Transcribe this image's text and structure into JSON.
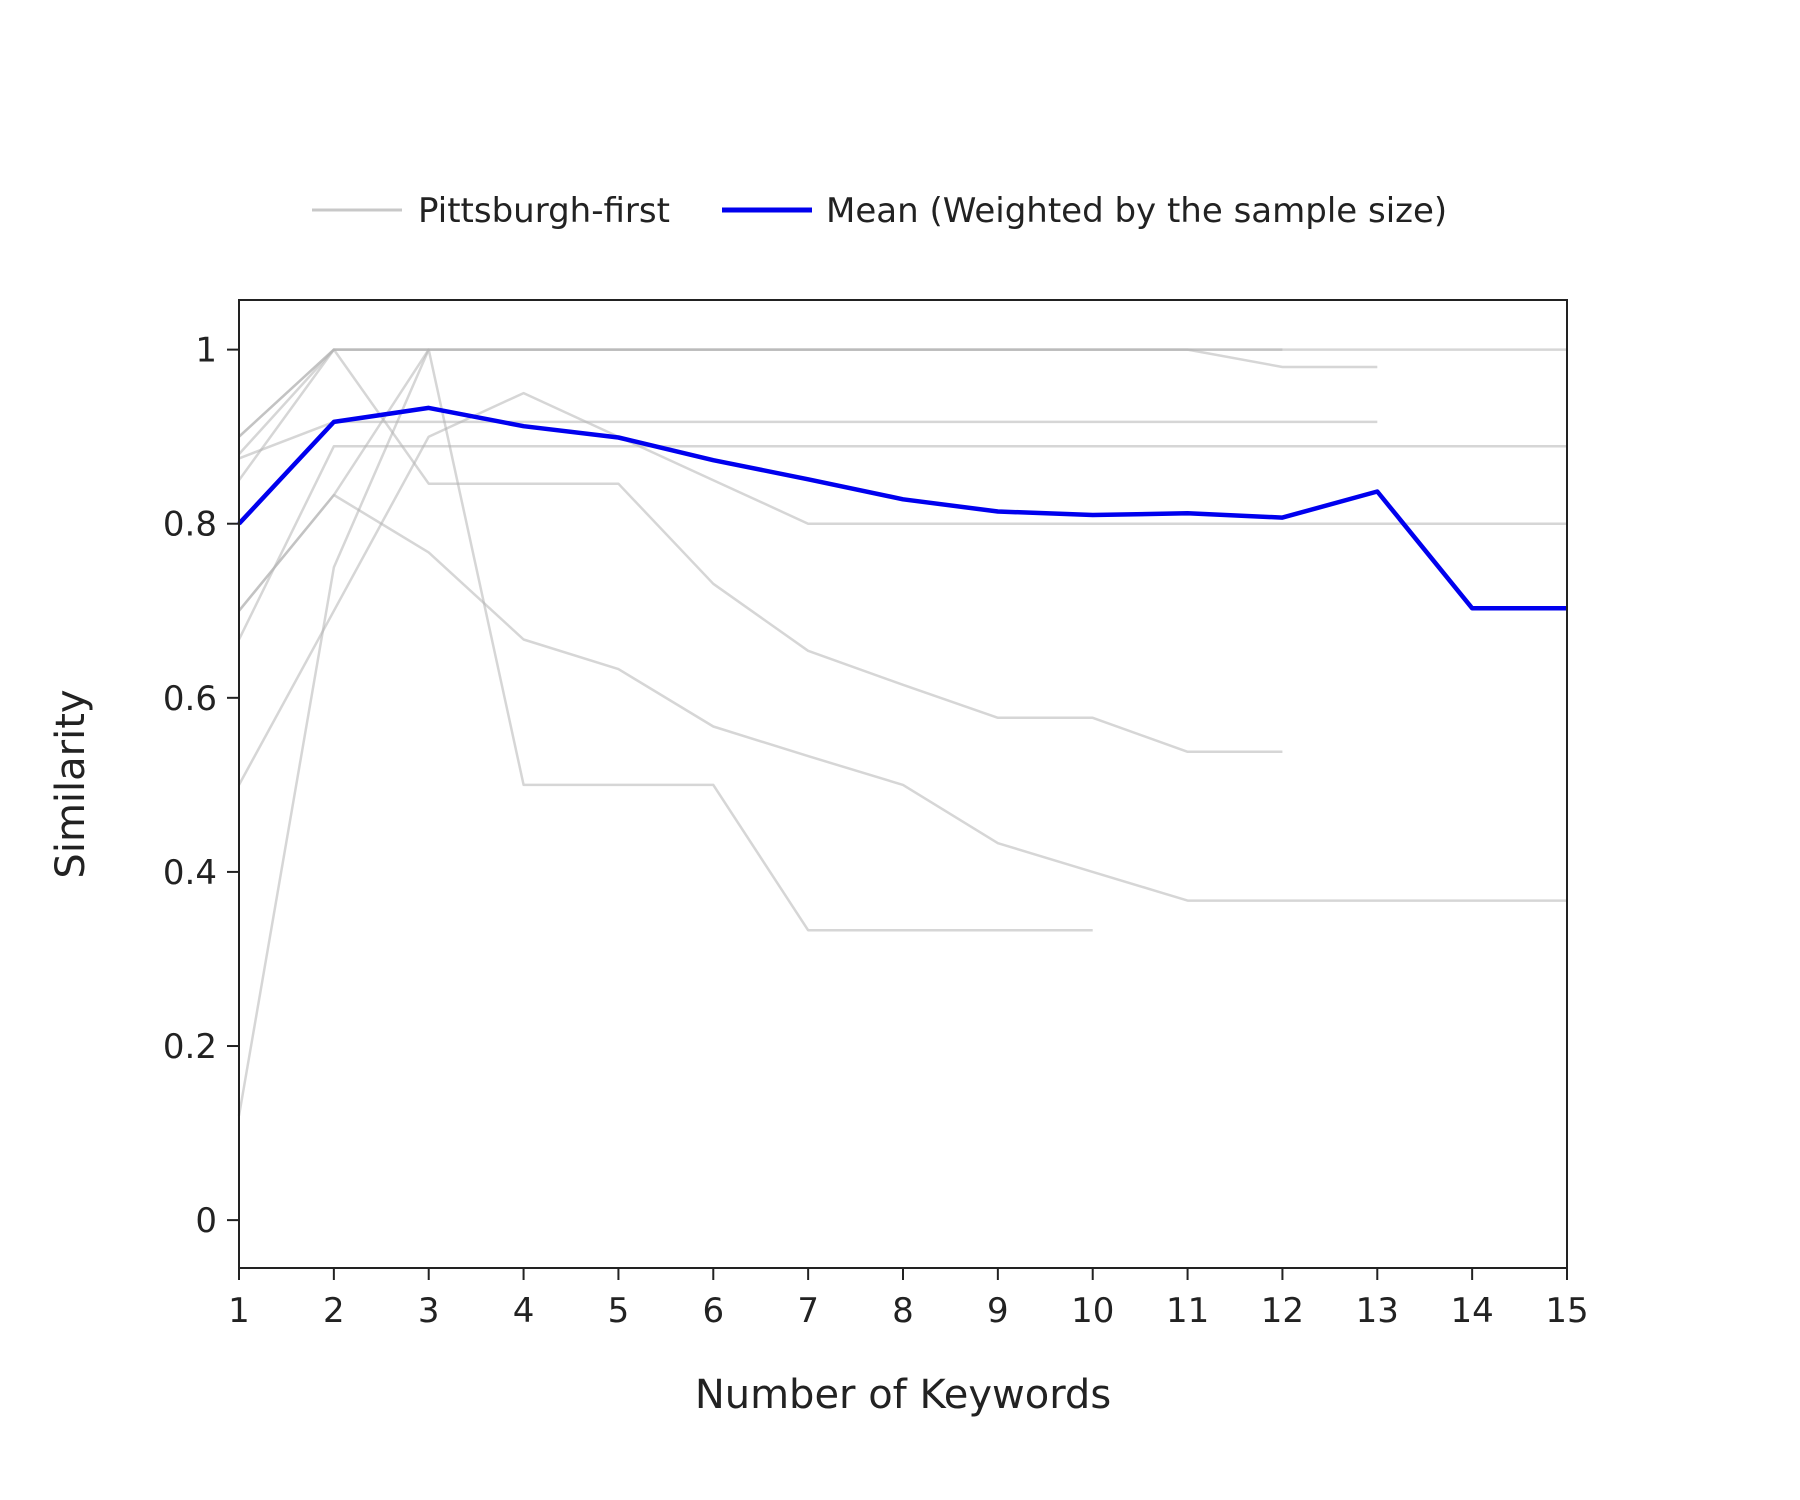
{
  "chart_data": {
    "type": "line",
    "title": "",
    "xlabel": "Number of Keywords",
    "ylabel": "Similarity",
    "xlim": [
      1,
      15
    ],
    "ylim": [
      -0.055,
      1.057
    ],
    "xticks": [
      1,
      2,
      3,
      4,
      5,
      6,
      7,
      8,
      9,
      10,
      11,
      12,
      13,
      14,
      15
    ],
    "yticks": [
      0,
      0.2,
      0.4,
      0.6,
      0.8,
      1
    ],
    "ytick_labels": [
      "0",
      "0.2",
      "0.4",
      "0.6",
      "0.8",
      "1"
    ],
    "grid": false,
    "legend": {
      "placement": "top-center",
      "entries": [
        {
          "label": "Pittsburgh-first",
          "color": "#c8c8c8",
          "style": "thin"
        },
        {
          "label": "Mean (Weighted by the sample size)",
          "color": "#0000ee",
          "style": "thick"
        }
      ]
    },
    "series_groups": {
      "Pittsburgh-first": {
        "color": "#b4b4b4",
        "lines": [
          {
            "x": [
              1,
              2,
              3,
              4,
              5,
              6,
              7,
              8,
              9,
              10,
              11,
              12,
              13,
              14,
              15
            ],
            "y": [
              0.9,
              1,
              1,
              1,
              1,
              1,
              1,
              1,
              1,
              1,
              1,
              1,
              1,
              1,
              1
            ]
          },
          {
            "x": [
              1,
              2,
              3,
              4,
              5,
              6,
              7,
              8,
              9,
              10,
              11,
              12
            ],
            "y": [
              0.9,
              1,
              1,
              1,
              1,
              1,
              1,
              1,
              1,
              1,
              1,
              1
            ]
          },
          {
            "x": [
              1,
              2,
              3,
              4,
              5,
              6,
              7,
              8,
              9,
              10,
              11,
              12,
              13
            ],
            "y": [
              0.88,
              1,
              1,
              1,
              1,
              1,
              1,
              1,
              1,
              1,
              1,
              0.98,
              0.98
            ]
          },
          {
            "x": [
              1,
              2,
              3,
              4,
              5,
              6,
              7,
              8,
              9,
              10,
              11,
              12,
              13
            ],
            "y": [
              0.875,
              0.917,
              0.917,
              0.917,
              0.917,
              0.917,
              0.917,
              0.917,
              0.917,
              0.917,
              0.917,
              0.917,
              0.917
            ]
          },
          {
            "x": [
              1,
              2,
              3,
              4,
              5,
              6,
              7,
              8,
              9,
              10,
              11,
              12,
              13,
              14,
              15
            ],
            "y": [
              0.667,
              0.889,
              0.889,
              0.889,
              0.889,
              0.889,
              0.889,
              0.889,
              0.889,
              0.889,
              0.889,
              0.889,
              0.889,
              0.889,
              0.889
            ]
          },
          {
            "x": [
              1,
              2,
              3,
              4,
              5,
              6,
              7,
              8,
              9,
              10,
              11,
              12,
              13,
              14,
              15
            ],
            "y": [
              0.5,
              0.7,
              0.9,
              0.95,
              0.9,
              0.85,
              0.8,
              0.8,
              0.8,
              0.8,
              0.8,
              0.8,
              0.8,
              0.8,
              0.8
            ]
          },
          {
            "x": [
              1,
              2,
              3,
              4,
              5,
              6,
              7,
              8,
              9,
              10,
              11,
              12
            ],
            "y": [
              0.85,
              1,
              0.846,
              0.846,
              0.846,
              0.731,
              0.654,
              0.615,
              0.577,
              0.577,
              0.538,
              0.538
            ]
          },
          {
            "x": [
              1,
              2,
              3,
              4,
              5,
              6,
              7,
              8,
              9,
              10,
              11,
              12,
              13,
              14,
              15
            ],
            "y": [
              0.7,
              0.833,
              0.767,
              0.667,
              0.633,
              0.567,
              0.533,
              0.5,
              0.433,
              0.4,
              0.367,
              0.367,
              0.367,
              0.367,
              0.367
            ]
          },
          {
            "x": [
              1,
              2,
              3,
              4,
              5,
              6,
              7,
              8,
              9,
              10
            ],
            "y": [
              0.12,
              0.75,
              1,
              0.5,
              0.5,
              0.5,
              0.333,
              0.333,
              0.333,
              0.333
            ]
          },
          {
            "x": [
              1,
              2,
              3
            ],
            "y": [
              0.7,
              0.833,
              1
            ]
          }
        ]
      },
      "Mean (Weighted by the sample size)": {
        "color": "#0000ee",
        "x": [
          1,
          2,
          3,
          4,
          5,
          6,
          7,
          8,
          9,
          10,
          11,
          12,
          13,
          14,
          15
        ],
        "y": [
          0.8,
          0.917,
          0.933,
          0.912,
          0.899,
          0.873,
          0.851,
          0.828,
          0.814,
          0.81,
          0.812,
          0.807,
          0.837,
          0.703,
          0.703
        ]
      }
    }
  }
}
